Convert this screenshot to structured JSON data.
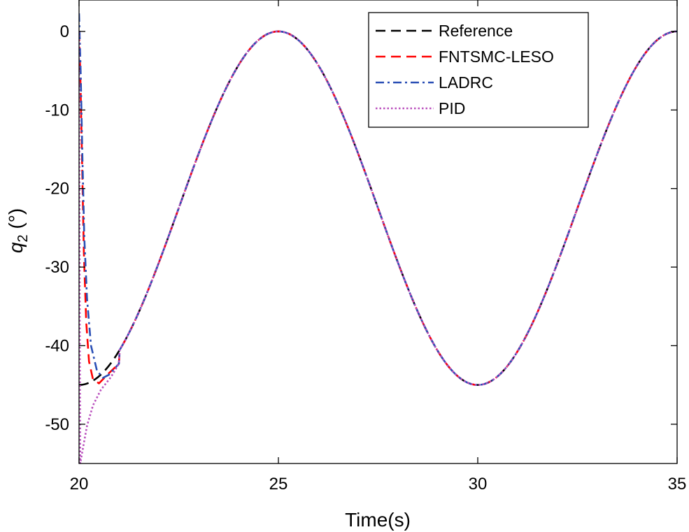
{
  "chart_data": {
    "type": "line",
    "xlabel": "Time(s)",
    "ylabel_var": "q",
    "ylabel_sub": "2",
    "ylabel_unit": " (°)",
    "xlim": [
      20,
      35
    ],
    "ylim": [
      -55,
      4
    ],
    "xticks": [
      20,
      25,
      30,
      35
    ],
    "yticks": [
      0,
      -10,
      -20,
      -30,
      -40,
      -50
    ],
    "xtick_labels": [
      "20",
      "25",
      "30",
      "35"
    ],
    "ytick_labels": [
      "0",
      "-10",
      "-20",
      "-30",
      "-40",
      "-50"
    ],
    "legend_position": "top-right",
    "reference": {
      "period": 10,
      "center": -22.5,
      "amplitude": 22.5,
      "peak_times": [
        25,
        35
      ],
      "trough_times": [
        20,
        30
      ]
    },
    "series": [
      {
        "name": "Reference",
        "color": "#000000",
        "style": "dashed",
        "transient": [
          [
            20.0,
            -45.0
          ]
        ]
      },
      {
        "name": "FNTSMC-LESO",
        "color": "#ff0000",
        "style": "dashed",
        "transient": [
          [
            20.0,
            0.0
          ],
          [
            20.03,
            -5.0
          ],
          [
            20.07,
            -15.0
          ],
          [
            20.12,
            -28.0
          ],
          [
            20.18,
            -37.0
          ],
          [
            20.25,
            -42.0
          ],
          [
            20.35,
            -44.3
          ],
          [
            20.5,
            -44.8
          ],
          [
            20.75,
            -43.5
          ],
          [
            21.0,
            -42.3
          ]
        ]
      },
      {
        "name": "LADRC",
        "color": "#2a4fb5",
        "style": "dashdot",
        "transient": [
          [
            20.0,
            2.3
          ],
          [
            20.04,
            -5.0
          ],
          [
            20.08,
            -15.0
          ],
          [
            20.13,
            -26.0
          ],
          [
            20.2,
            -34.0
          ],
          [
            20.3,
            -40.0
          ],
          [
            20.45,
            -43.2
          ],
          [
            20.6,
            -44.1
          ],
          [
            20.75,
            -43.7
          ],
          [
            21.0,
            -42.3
          ]
        ]
      },
      {
        "name": "PID",
        "color": "#b94fbd",
        "style": "dotted",
        "transient": [
          [
            20.0,
            0.0
          ],
          [
            20.01,
            -20.0
          ],
          [
            20.02,
            -42.0
          ],
          [
            20.03,
            -55.0
          ],
          [
            20.1,
            -53.0
          ],
          [
            20.2,
            -50.2
          ],
          [
            20.35,
            -47.6
          ],
          [
            20.55,
            -45.6
          ],
          [
            20.8,
            -44.0
          ],
          [
            21.0,
            -42.3
          ]
        ]
      }
    ]
  }
}
